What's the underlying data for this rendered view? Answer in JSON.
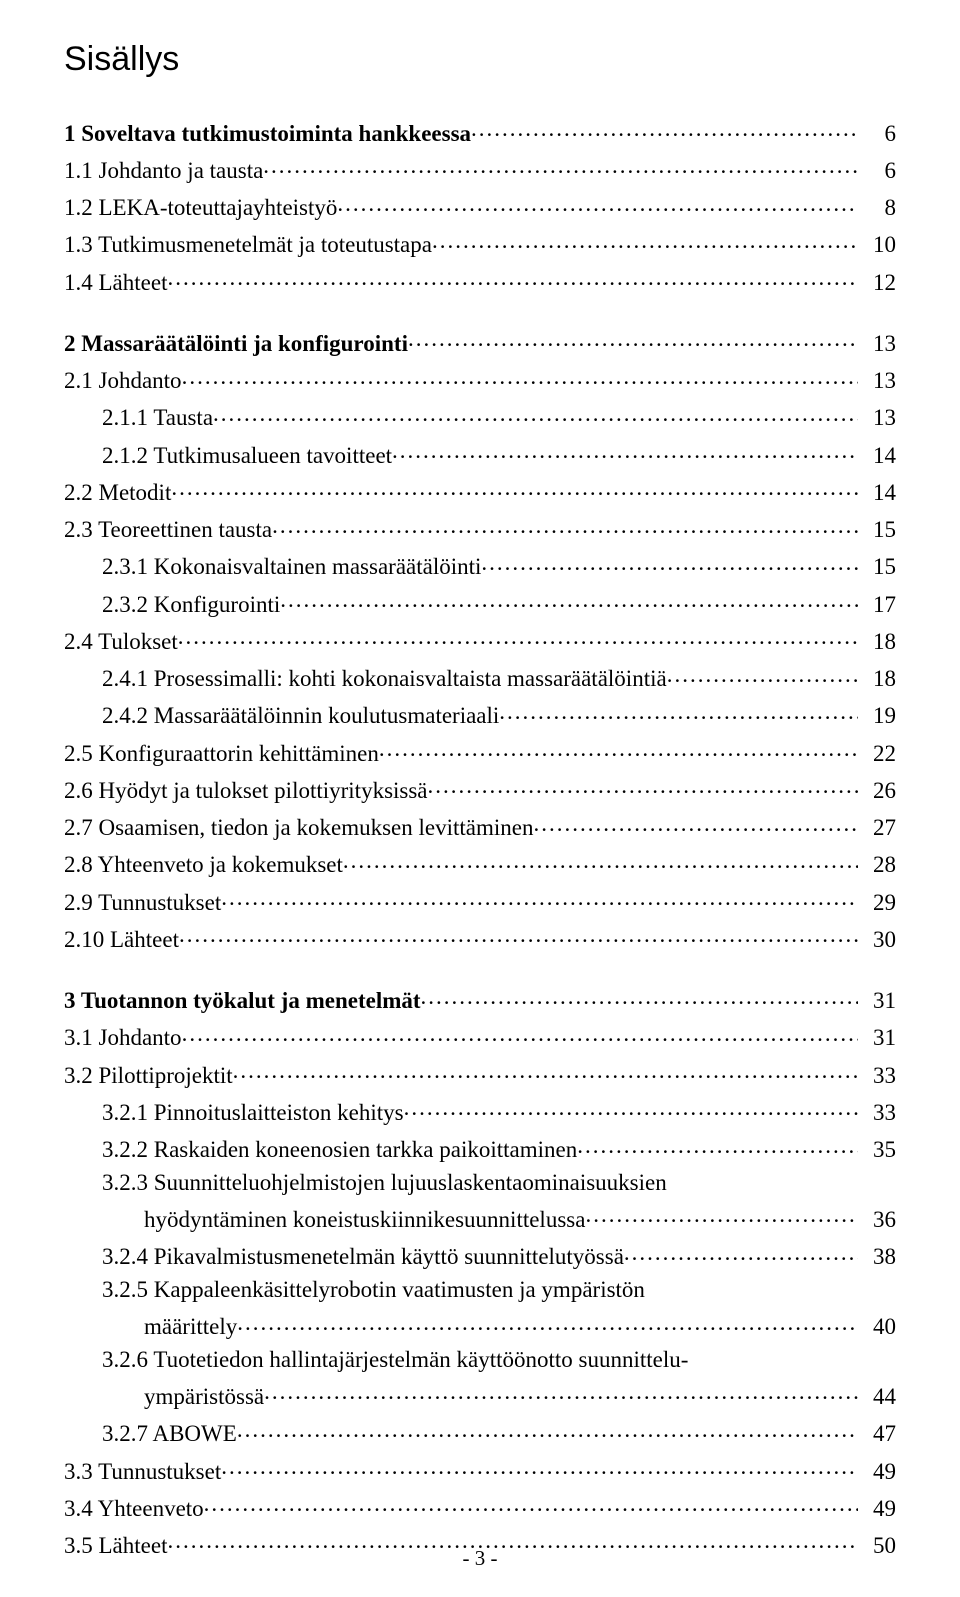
{
  "title": "Sisällys",
  "footer_page": "- 3 -",
  "entries": [
    {
      "kind": "head",
      "text": "1 Soveltava tutkimustoiminta hankkeessa",
      "page": "6"
    },
    {
      "kind": "item",
      "text": "1.1 Johdanto ja tausta",
      "page": "6"
    },
    {
      "kind": "item",
      "text": "1.2 LEKA-toteuttajayhteistyö",
      "page": "8"
    },
    {
      "kind": "item",
      "text": "1.3 Tutkimusmenetelmät ja toteutustapa",
      "page": "10"
    },
    {
      "kind": "item",
      "text": "1.4 Lähteet",
      "page": "12"
    },
    {
      "kind": "gap"
    },
    {
      "kind": "head",
      "text": "2 Massaräätälöinti ja konfigurointi",
      "page": "13"
    },
    {
      "kind": "item",
      "text": "2.1 Johdanto",
      "page": "13"
    },
    {
      "kind": "sub",
      "text": "2.1.1 Tausta",
      "page": "13"
    },
    {
      "kind": "sub",
      "text": "2.1.2 Tutkimusalueen tavoitteet",
      "page": "14"
    },
    {
      "kind": "item",
      "text": "2.2 Metodit",
      "page": "14"
    },
    {
      "kind": "item",
      "text": "2.3 Teoreettinen tausta",
      "page": "15"
    },
    {
      "kind": "sub",
      "text": "2.3.1 Kokonaisvaltainen massaräätälöinti",
      "page": "15"
    },
    {
      "kind": "sub",
      "text": "2.3.2 Konfigurointi",
      "page": "17"
    },
    {
      "kind": "item",
      "text": "2.4 Tulokset",
      "page": "18"
    },
    {
      "kind": "sub",
      "text": "2.4.1 Prosessimalli: kohti kokonaisvaltaista massaräätälöintiä",
      "page": "18"
    },
    {
      "kind": "sub",
      "text": "2.4.2 Massaräätälöinnin koulutusmateriaali",
      "page": "19"
    },
    {
      "kind": "item",
      "text": "2.5 Konfiguraattorin kehittäminen",
      "page": "22"
    },
    {
      "kind": "item",
      "text": "2.6 Hyödyt ja tulokset pilottiyrityksissä",
      "page": "26"
    },
    {
      "kind": "item",
      "text": "2.7 Osaamisen, tiedon ja kokemuksen levittäminen",
      "page": "27"
    },
    {
      "kind": "item",
      "text": "2.8 Yhteenveto ja kokemukset",
      "page": "28"
    },
    {
      "kind": "item",
      "text": "2.9 Tunnustukset",
      "page": "29"
    },
    {
      "kind": "item",
      "text": "2.10 Lähteet",
      "page": "30"
    },
    {
      "kind": "gap"
    },
    {
      "kind": "head",
      "text": "3 Tuotannon työkalut ja menetelmät",
      "page": "31"
    },
    {
      "kind": "item",
      "text": "3.1 Johdanto",
      "page": "31"
    },
    {
      "kind": "item",
      "text": "3.2 Pilottiprojektit",
      "page": "33"
    },
    {
      "kind": "sub",
      "text": "3.2.1 Pinnoituslaitteiston kehitys",
      "page": "33"
    },
    {
      "kind": "sub",
      "text": "3.2.2 Raskaiden koneenosien tarkka paikoittaminen",
      "page": "35"
    },
    {
      "kind": "multi_sub",
      "first": "3.2.3 Suunnitteluohjelmistojen lujuuslaskentaominaisuuksien",
      "cont": "hyödyntäminen koneistuskiinnikesuunnittelussa",
      "page": "36"
    },
    {
      "kind": "sub",
      "text": "3.2.4 Pikavalmistusmenetelmän käyttö suunnittelutyössä",
      "page": "38"
    },
    {
      "kind": "multi_sub",
      "first": "3.2.5 Kappaleenkäsittelyrobotin vaatimusten ja ympäristön",
      "cont": "määrittely",
      "page": "40"
    },
    {
      "kind": "multi_sub",
      "first": "3.2.6 Tuotetiedon hallintajärjestelmän käyttöönotto suunnittelu-",
      "cont": "ympäristössä",
      "page": "44"
    },
    {
      "kind": "sub",
      "text": "3.2.7 ABOWE",
      "page": "47"
    },
    {
      "kind": "item",
      "text": "3.3 Tunnustukset",
      "page": "49"
    },
    {
      "kind": "item",
      "text": "3.4 Yhteenveto",
      "page": "49"
    },
    {
      "kind": "item",
      "text": "3.5 Lähteet",
      "page": "50"
    }
  ]
}
